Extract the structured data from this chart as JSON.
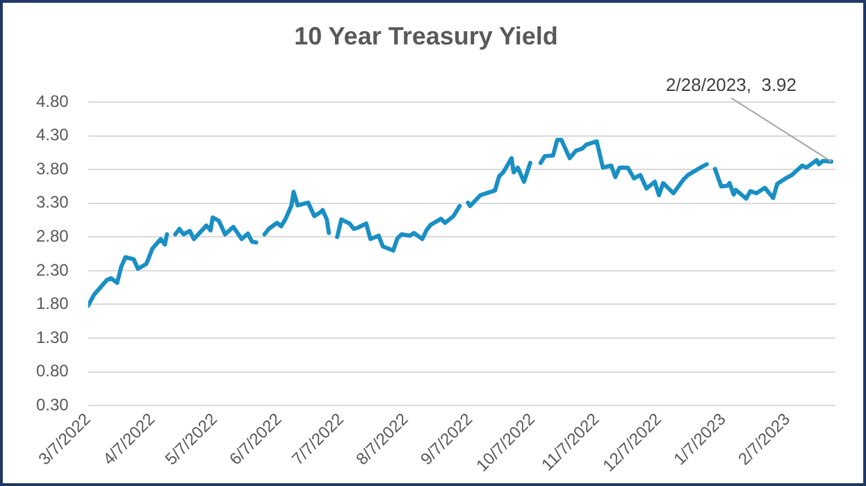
{
  "chart_data": {
    "type": "line",
    "title": "10 Year Treasury Yield",
    "x": [
      "2022-03-07",
      "2022-03-10",
      "2022-03-16",
      "2022-03-18",
      "2022-03-21",
      "2022-03-23",
      "2022-03-25",
      "2022-03-29",
      "2022-03-31",
      "2022-04-04",
      "2022-04-05",
      "2022-04-07",
      "2022-04-11",
      "2022-04-13",
      "2022-04-14",
      "2022-04-15",
      "2022-04-18",
      "2022-04-20",
      "2022-04-22",
      "2022-04-25",
      "2022-04-27",
      "2022-05-03",
      "2022-05-05",
      "2022-05-06",
      "2022-05-09",
      "2022-05-12",
      "2022-05-16",
      "2022-05-20",
      "2022-05-23",
      "2022-05-25",
      "2022-05-27",
      "2022-05-30",
      "2022-05-31",
      "2022-06-02",
      "2022-06-06",
      "2022-06-08",
      "2022-06-10",
      "2022-06-13",
      "2022-06-14",
      "2022-06-16",
      "2022-06-21",
      "2022-06-24",
      "2022-06-27",
      "2022-06-28",
      "2022-06-30",
      "2022-07-01",
      "2022-07-04",
      "2022-07-05",
      "2022-07-07",
      "2022-07-11",
      "2022-07-13",
      "2022-07-15",
      "2022-07-19",
      "2022-07-21",
      "2022-07-25",
      "2022-07-27",
      "2022-08-01",
      "2022-08-03",
      "2022-08-05",
      "2022-08-09",
      "2022-08-11",
      "2022-08-15",
      "2022-08-17",
      "2022-08-19",
      "2022-08-24",
      "2022-08-26",
      "2022-08-30",
      "2022-09-02",
      "2022-09-05",
      "2022-09-06",
      "2022-09-07",
      "2022-09-12",
      "2022-09-19",
      "2022-09-21",
      "2022-09-23",
      "2022-09-27",
      "2022-09-28",
      "2022-09-30",
      "2022-10-03",
      "2022-10-06",
      "2022-10-10",
      "2022-10-11",
      "2022-10-13",
      "2022-10-17",
      "2022-10-19",
      "2022-10-21",
      "2022-10-25",
      "2022-10-28",
      "2022-10-31",
      "2022-11-02",
      "2022-11-07",
      "2022-11-10",
      "2022-11-14",
      "2022-11-16",
      "2022-11-18",
      "2022-11-22",
      "2022-11-25",
      "2022-11-28",
      "2022-12-01",
      "2022-12-05",
      "2022-12-07",
      "2022-12-09",
      "2022-12-14",
      "2022-12-19",
      "2022-12-21",
      "2022-12-27",
      "2022-12-30",
      "2023-01-02",
      "2023-01-03",
      "2023-01-06",
      "2023-01-09",
      "2023-01-10",
      "2023-01-12",
      "2023-01-13",
      "2023-01-18",
      "2023-01-20",
      "2023-01-23",
      "2023-01-27",
      "2023-01-31",
      "2023-02-02",
      "2023-02-06",
      "2023-02-09",
      "2023-02-14",
      "2023-02-16",
      "2023-02-21",
      "2023-02-22",
      "2023-02-24",
      "2023-02-28"
    ],
    "series": [
      {
        "color": "#1a8fc4",
        "values": [
          1.78,
          1.95,
          2.16,
          2.19,
          2.12,
          2.36,
          2.5,
          2.47,
          2.33,
          2.4,
          2.47,
          2.63,
          2.77,
          2.69,
          2.84,
          null,
          2.84,
          2.92,
          2.84,
          2.89,
          2.77,
          2.97,
          2.9,
          3.09,
          3.04,
          2.84,
          2.95,
          2.77,
          2.85,
          2.73,
          2.72,
          null,
          2.84,
          2.92,
          3.01,
          2.96,
          3.06,
          3.27,
          3.47,
          3.27,
          3.31,
          3.11,
          3.17,
          3.2,
          3.06,
          2.86,
          null,
          2.8,
          3.06,
          3.0,
          2.92,
          2.94,
          3.0,
          2.77,
          2.82,
          2.66,
          2.6,
          2.78,
          2.84,
          2.82,
          2.86,
          2.77,
          2.9,
          2.98,
          3.07,
          3.01,
          3.11,
          3.26,
          null,
          3.31,
          3.26,
          3.42,
          3.49,
          3.7,
          3.76,
          3.97,
          3.76,
          3.83,
          3.62,
          3.9,
          null,
          3.9,
          4.0,
          4.01,
          4.24,
          4.24,
          3.97,
          4.08,
          4.11,
          4.17,
          4.22,
          3.83,
          3.86,
          3.69,
          3.83,
          3.83,
          3.67,
          3.72,
          3.52,
          3.62,
          3.42,
          3.6,
          3.45,
          3.66,
          3.72,
          3.83,
          3.88,
          null,
          3.81,
          3.55,
          3.56,
          3.6,
          3.43,
          3.5,
          3.37,
          3.48,
          3.45,
          3.53,
          3.38,
          3.59,
          3.67,
          3.72,
          3.86,
          3.83,
          3.94,
          3.88,
          3.93,
          3.92
        ]
      }
    ],
    "xlim": [
      "2022-03-07",
      "2023-03-02"
    ],
    "xticks": [
      {
        "value": "2022-03-07",
        "label": "3/7/2022"
      },
      {
        "value": "2022-04-07",
        "label": "4/7/2022"
      },
      {
        "value": "2022-05-07",
        "label": "5/7/2022"
      },
      {
        "value": "2022-06-07",
        "label": "6/7/2022"
      },
      {
        "value": "2022-07-07",
        "label": "7/7/2022"
      },
      {
        "value": "2022-08-07",
        "label": "8/7/2022"
      },
      {
        "value": "2022-09-07",
        "label": "9/7/2022"
      },
      {
        "value": "2022-10-07",
        "label": "10/7/2022"
      },
      {
        "value": "2022-11-07",
        "label": "11/7/2022"
      },
      {
        "value": "2022-12-07",
        "label": "12/7/2022"
      },
      {
        "value": "2023-01-07",
        "label": "1/7/2023"
      },
      {
        "value": "2023-02-07",
        "label": "2/7/2023"
      }
    ],
    "ylim": [
      0.3,
      4.8
    ],
    "yticks": [
      {
        "value": 0.3,
        "label": "0.30"
      },
      {
        "value": 0.8,
        "label": "0.80"
      },
      {
        "value": 1.3,
        "label": "1.30"
      },
      {
        "value": 1.8,
        "label": "1.80"
      },
      {
        "value": 2.3,
        "label": "2.30"
      },
      {
        "value": 2.8,
        "label": "2.80"
      },
      {
        "value": 3.3,
        "label": "3.30"
      },
      {
        "value": 3.8,
        "label": "3.80"
      },
      {
        "value": 4.3,
        "label": "4.30"
      },
      {
        "value": 4.8,
        "label": "4.80"
      }
    ],
    "grid": "y",
    "legend": false,
    "marker": "none",
    "line_style": "solid",
    "annotations": [
      {
        "text": "2/28/2023,  3.92",
        "x": "2023-02-28",
        "y": 3.92
      }
    ]
  }
}
